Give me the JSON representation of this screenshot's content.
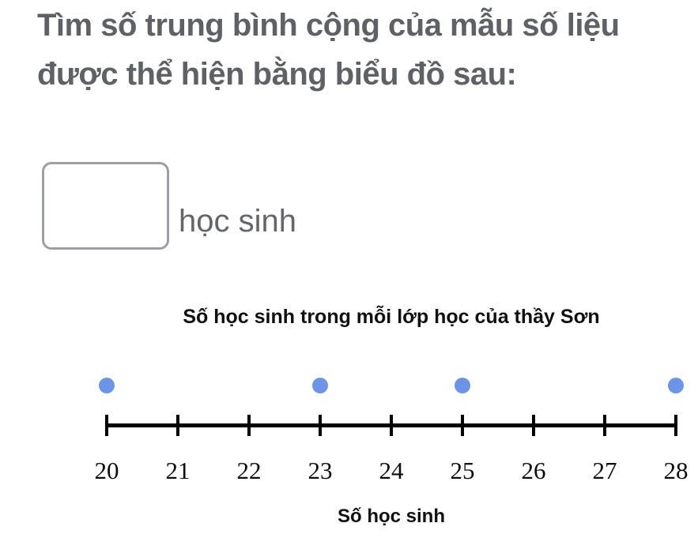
{
  "colors": {
    "title_text": "#5e6267",
    "unit_text": "#63666b",
    "box_border": "#9aa0a6",
    "dot_fill": "#6c95e8",
    "axis_black": "#000000"
  },
  "question": {
    "title_line1": "Tìm số trung bình cộng của mẫu số liệu",
    "title_line2": "được thể hiện bằng biểu đồ sau:",
    "answer": {
      "value": "",
      "unit_label": "học sinh"
    }
  },
  "chart_data": {
    "type": "scatter",
    "subtype": "dot-plot",
    "title": "Số học sinh trong mỗi lớp học của thầy Sơn",
    "xlabel": "Số học sinh",
    "xlim": [
      20,
      28
    ],
    "x_ticks": [
      20,
      21,
      22,
      23,
      24,
      25,
      26,
      27,
      28
    ],
    "points": [
      {
        "x": 20,
        "count": 1
      },
      {
        "x": 23,
        "count": 1
      },
      {
        "x": 25,
        "count": 1
      },
      {
        "x": 28,
        "count": 1
      }
    ],
    "grid": false,
    "legend": "none"
  }
}
